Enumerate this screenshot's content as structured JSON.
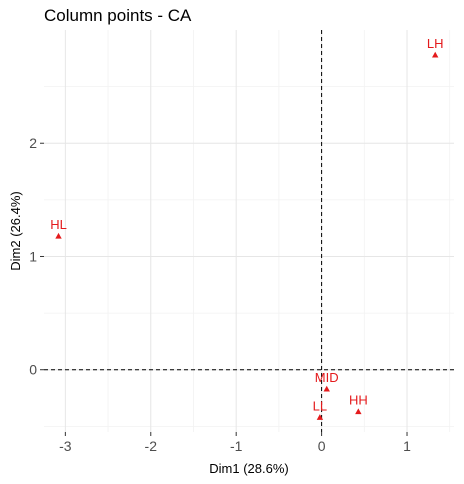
{
  "chart_data": {
    "type": "scatter",
    "title": "Column points - CA",
    "xlabel": "Dim1 (28.6%)",
    "ylabel": "Dim2 (26.4%)",
    "xlim": [
      -3.25,
      1.55
    ],
    "ylim": [
      -0.55,
      3.0
    ],
    "x_ticks": [
      -3,
      -2,
      -1,
      0,
      1
    ],
    "y_ticks": [
      0,
      1,
      2
    ],
    "grid": true,
    "reference_lines": "dashed at x=0 and y=0",
    "point_color": "#e41a1c",
    "marker": "triangle",
    "points": [
      {
        "label": "LH",
        "x": 1.33,
        "y": 2.78
      },
      {
        "label": "HL",
        "x": -3.08,
        "y": 1.18
      },
      {
        "label": "MID",
        "x": 0.06,
        "y": -0.17
      },
      {
        "label": "HH",
        "x": 0.43,
        "y": -0.37
      },
      {
        "label": "LL",
        "x": -0.02,
        "y": -0.42
      }
    ]
  }
}
